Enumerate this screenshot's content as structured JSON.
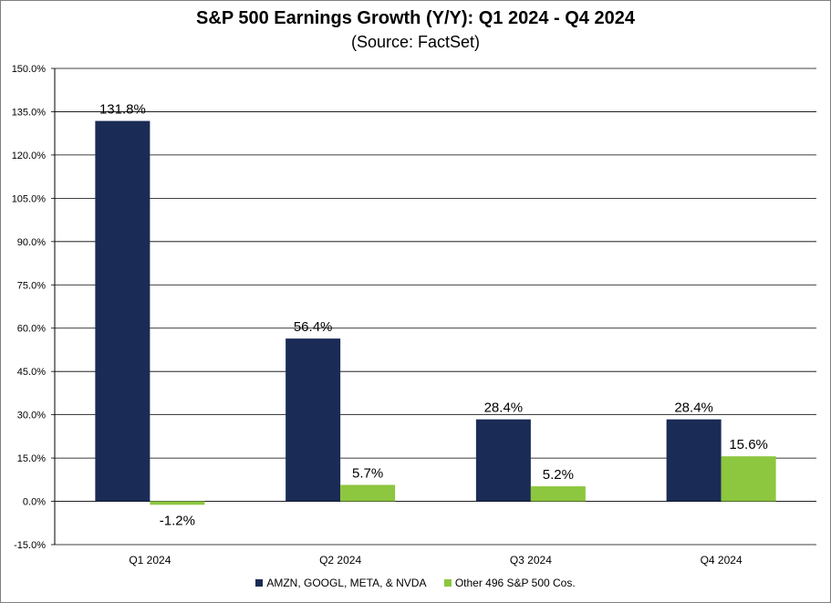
{
  "chart_data": {
    "type": "bar",
    "title": "S&P 500 Earnings Growth (Y/Y): Q1 2024 - Q4 2024",
    "subtitle": "(Source: FactSet)",
    "categories": [
      "Q1 2024",
      "Q2 2024",
      "Q3 2024",
      "Q4 2024"
    ],
    "series": [
      {
        "name": "AMZN, GOOGL, META, & NVDA",
        "values": [
          131.8,
          56.4,
          28.4,
          28.4
        ],
        "labels": [
          "131.8%",
          "56.4%",
          "28.4%",
          "28.4%"
        ],
        "color": "#1a2b56"
      },
      {
        "name": "Other 496 S&P 500 Cos.",
        "values": [
          -1.2,
          5.7,
          5.2,
          15.6
        ],
        "labels": [
          "-1.2%",
          "5.7%",
          "5.2%",
          "15.6%"
        ],
        "color": "#8dc63f"
      }
    ],
    "ylim": [
      -15,
      150
    ],
    "yticks": [
      -15,
      0,
      15,
      30,
      45,
      60,
      75,
      90,
      105,
      120,
      135,
      150
    ],
    "ytick_labels": [
      "-15.0%",
      "0.0%",
      "15.0%",
      "30.0%",
      "45.0%",
      "60.0%",
      "75.0%",
      "90.0%",
      "105.0%",
      "120.0%",
      "135.0%",
      "150.0%"
    ],
    "grid": true,
    "legend_position": "bottom",
    "xlabel": "",
    "ylabel": ""
  }
}
